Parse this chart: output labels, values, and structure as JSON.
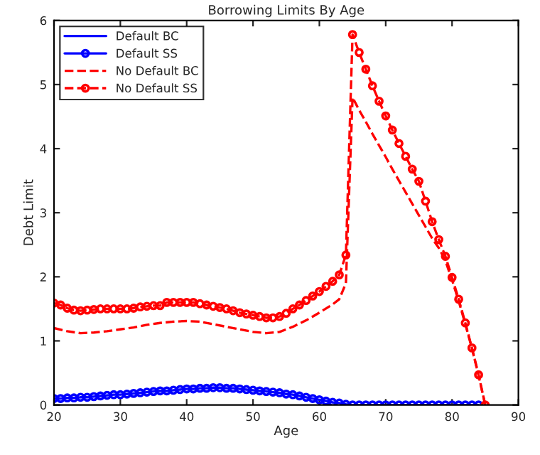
{
  "chart_data": {
    "type": "line",
    "title": "Borrowing Limits By Age",
    "xlabel": "Age",
    "ylabel": "Debt Limit",
    "xlim": [
      20,
      90
    ],
    "xticks": [
      20,
      30,
      40,
      50,
      60,
      70,
      80,
      90
    ],
    "ylim": [
      0,
      6
    ],
    "yticks": [
      0,
      1,
      2,
      3,
      4,
      5,
      6
    ],
    "grid": false,
    "legend": "top left",
    "series": [
      {
        "name": "Default BC",
        "color": "#0000ff",
        "line_style": "solid",
        "marker": "none"
      },
      {
        "name": "Default SS",
        "color": "#0000ff",
        "line_style": "solid",
        "marker": "circle",
        "x": [
          20,
          21,
          22,
          23,
          24,
          25,
          26,
          27,
          28,
          29,
          30,
          31,
          32,
          33,
          34,
          35,
          36,
          37,
          38,
          39,
          40,
          41,
          42,
          43,
          44,
          45,
          46,
          47,
          48,
          49,
          50,
          51,
          52,
          53,
          54,
          55,
          56,
          57,
          58,
          59,
          60,
          61,
          62,
          63,
          64,
          65,
          66,
          67,
          68,
          69,
          70,
          71,
          72,
          73,
          74,
          75,
          76,
          77,
          78,
          79,
          80,
          81,
          82,
          83,
          84
        ],
        "values": [
          0.1,
          0.1,
          0.11,
          0.11,
          0.12,
          0.12,
          0.13,
          0.14,
          0.15,
          0.16,
          0.16,
          0.17,
          0.18,
          0.19,
          0.2,
          0.21,
          0.22,
          0.22,
          0.23,
          0.24,
          0.25,
          0.25,
          0.26,
          0.26,
          0.27,
          0.27,
          0.26,
          0.26,
          0.25,
          0.24,
          0.23,
          0.22,
          0.21,
          0.2,
          0.19,
          0.17,
          0.16,
          0.14,
          0.12,
          0.1,
          0.08,
          0.06,
          0.04,
          0.03,
          0.01,
          0,
          0,
          0,
          0,
          0,
          0,
          0,
          0,
          0,
          0,
          0,
          0,
          0,
          0,
          0,
          0,
          0,
          0,
          0,
          0
        ]
      },
      {
        "name": "No Default BC",
        "color": "#ff0000",
        "line_style": "dashed",
        "marker": "none",
        "x": [
          20,
          22,
          24,
          26,
          28,
          30,
          32,
          34,
          36,
          38,
          40,
          42,
          44,
          46,
          48,
          50,
          52,
          54,
          56,
          58,
          60,
          62,
          63,
          64,
          65,
          66,
          67,
          68,
          69,
          70,
          71,
          72,
          73,
          74,
          75,
          76,
          77,
          78,
          79,
          80,
          81,
          82,
          83,
          84,
          85
        ],
        "values": [
          1.2,
          1.15,
          1.12,
          1.13,
          1.15,
          1.18,
          1.21,
          1.25,
          1.28,
          1.3,
          1.31,
          1.3,
          1.26,
          1.22,
          1.18,
          1.14,
          1.12,
          1.14,
          1.22,
          1.32,
          1.44,
          1.57,
          1.65,
          1.9,
          4.8,
          4.6,
          4.42,
          4.23,
          4.05,
          3.87,
          3.68,
          3.5,
          3.32,
          3.14,
          2.96,
          2.78,
          2.6,
          2.45,
          2.25,
          1.95,
          1.62,
          1.26,
          0.88,
          0.46,
          0
        ]
      },
      {
        "name": "No Default SS",
        "color": "#ff0000",
        "line_style": "dashed",
        "marker": "circle",
        "x": [
          20,
          21,
          22,
          23,
          24,
          25,
          26,
          27,
          28,
          29,
          30,
          31,
          32,
          33,
          34,
          35,
          36,
          37,
          38,
          39,
          40,
          41,
          42,
          43,
          44,
          45,
          46,
          47,
          48,
          49,
          50,
          51,
          52,
          53,
          54,
          55,
          56,
          57,
          58,
          59,
          60,
          61,
          62,
          63,
          64,
          65,
          66,
          67,
          68,
          69,
          70,
          71,
          72,
          73,
          74,
          75,
          76,
          77,
          78,
          79,
          80,
          81,
          82,
          83,
          84,
          85
        ],
        "values": [
          1.59,
          1.56,
          1.51,
          1.48,
          1.47,
          1.48,
          1.49,
          1.5,
          1.5,
          1.5,
          1.5,
          1.5,
          1.51,
          1.53,
          1.54,
          1.55,
          1.55,
          1.6,
          1.6,
          1.6,
          1.6,
          1.6,
          1.58,
          1.56,
          1.54,
          1.52,
          1.5,
          1.47,
          1.44,
          1.42,
          1.4,
          1.38,
          1.36,
          1.36,
          1.38,
          1.43,
          1.5,
          1.56,
          1.63,
          1.7,
          1.77,
          1.85,
          1.93,
          2.03,
          2.34,
          5.78,
          5.5,
          5.24,
          4.98,
          4.74,
          4.51,
          4.29,
          4.08,
          3.88,
          3.68,
          3.49,
          3.18,
          2.86,
          2.58,
          2.32,
          1.99,
          1.65,
          1.28,
          0.89,
          0.47,
          0
        ]
      }
    ]
  }
}
